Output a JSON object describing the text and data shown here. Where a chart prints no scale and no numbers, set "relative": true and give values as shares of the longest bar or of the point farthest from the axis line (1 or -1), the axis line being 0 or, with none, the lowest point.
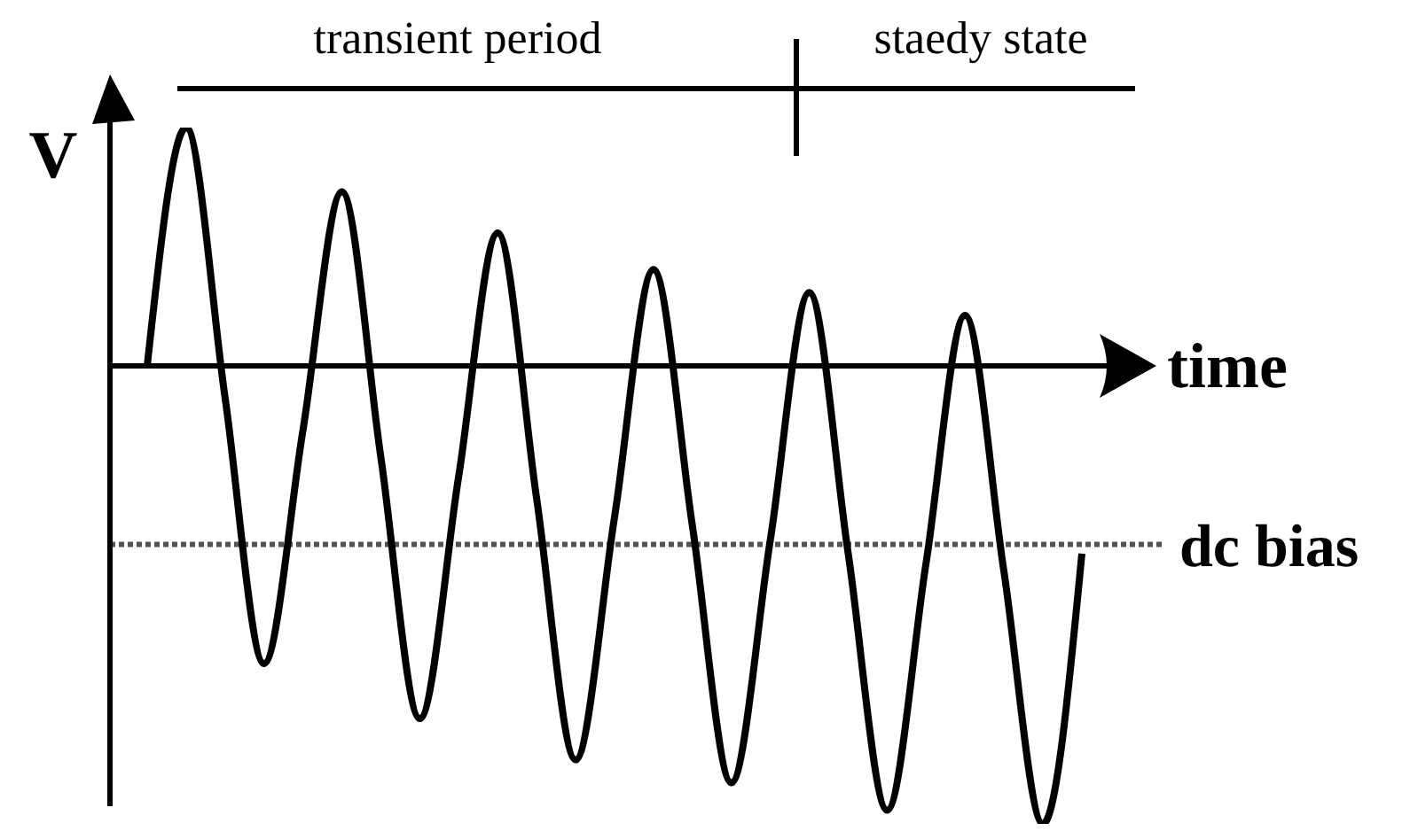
{
  "chart_data": {
    "type": "line",
    "relative": true,
    "ylabel": "V",
    "xlabel": "time",
    "categories": [
      null,
      null,
      null,
      null,
      null,
      null,
      null,
      null,
      null,
      null,
      null,
      null,
      null,
      null,
      null,
      null,
      null,
      null,
      null,
      null,
      null,
      null,
      null,
      null,
      null
    ],
    "series": [
      {
        "color": "#000000",
        "values": [
          0,
          0.52,
          -0.07,
          -0.65,
          -0.14,
          0.38,
          -0.2,
          -0.77,
          -0.24,
          0.29,
          -0.29,
          -0.86,
          -0.33,
          0.21,
          -0.35,
          -0.91,
          -0.38,
          0.16,
          -0.41,
          -0.97,
          -0.43,
          0.11,
          -0.45,
          -1,
          -0.41
        ]
      }
    ],
    "ref_lines": [
      {
        "axis": "y",
        "value": -0.39,
        "label": "dc bias",
        "color": "#555555",
        "line_style": "dotted"
      }
    ],
    "annotations": [
      "transient period",
      "staedy state"
    ],
    "marker": "none",
    "line_style": "solid",
    "grid": false,
    "legend": false
  }
}
